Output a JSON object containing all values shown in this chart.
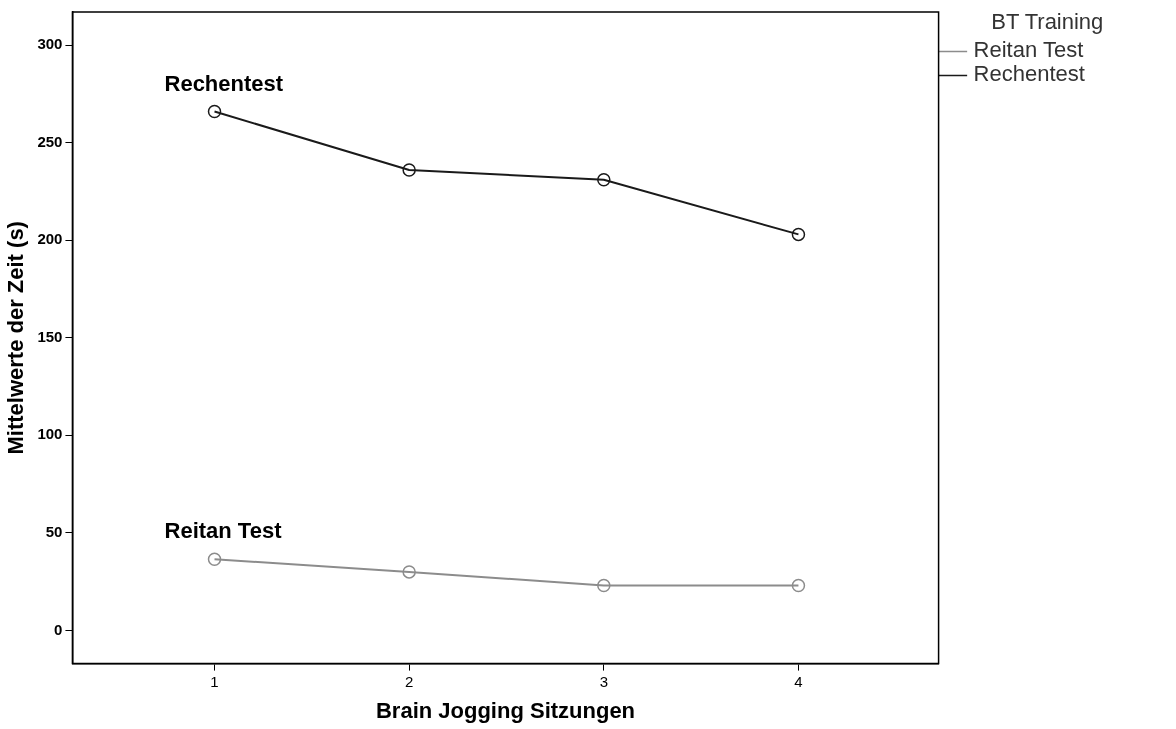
{
  "chart_data": {
    "type": "line",
    "xlabel": "Brain Jogging Sitzungen",
    "ylabel": "Mittelwerte der Zeit (s)",
    "legend_title": "BT Training",
    "legend": "top right",
    "marker": "circle",
    "grid": false,
    "x": [
      1,
      2,
      3,
      4
    ],
    "xlim": [
      0.27,
      4.72
    ],
    "xticks": [
      1,
      2,
      3,
      4
    ],
    "ylim": [
      -17,
      317
    ],
    "yticks": [
      0,
      50,
      100,
      150,
      200,
      250,
      300
    ],
    "series": [
      {
        "name": "Reitan Test",
        "color": "#8c8c8c",
        "values": [
          36.5,
          30,
          23,
          23
        ]
      },
      {
        "name": "Rechentest",
        "color": "#1a1a1a",
        "values": [
          266,
          236,
          231,
          203
        ]
      }
    ]
  }
}
